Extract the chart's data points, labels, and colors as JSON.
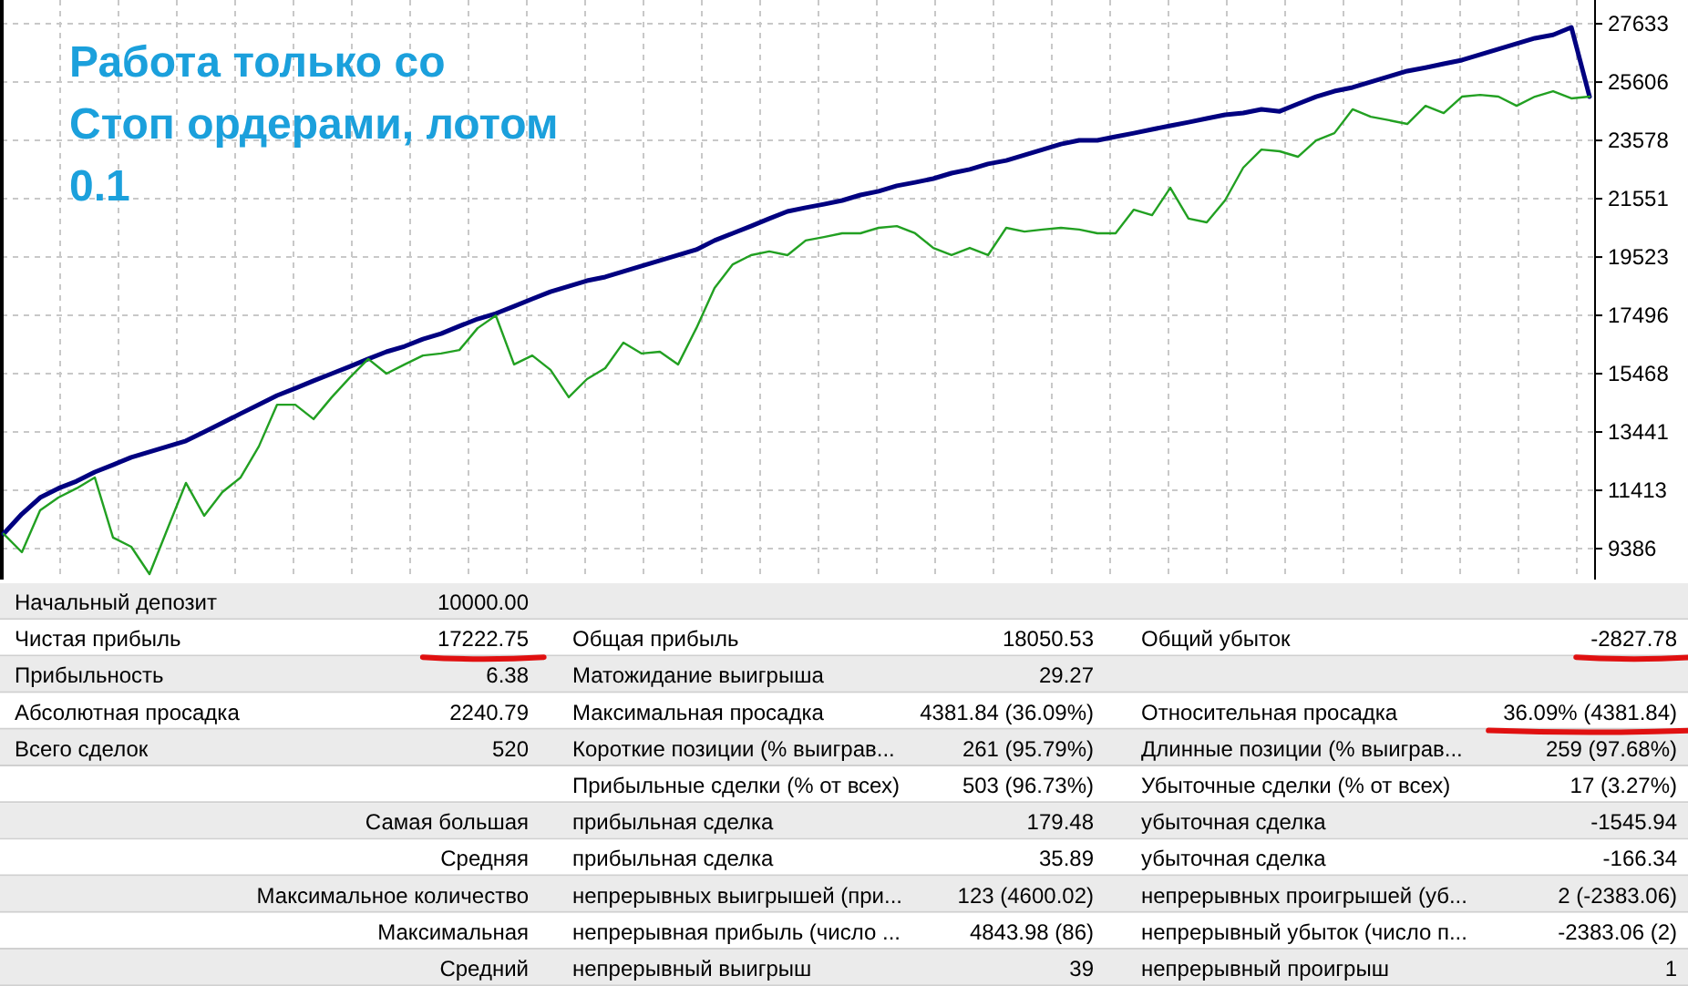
{
  "chart_data": {
    "type": "line",
    "title": "Работа только со Стоп ордерами, лотом 0.1",
    "categories": [
      null,
      null,
      null,
      null,
      null,
      null,
      null,
      null,
      null,
      null,
      null,
      null,
      null,
      null,
      null,
      null,
      null,
      null,
      null,
      null,
      null,
      null,
      null,
      null,
      null,
      null,
      null,
      null,
      null,
      null,
      null,
      null,
      null,
      null,
      null,
      null,
      null,
      null,
      null,
      null,
      null,
      null,
      null,
      null,
      null,
      null,
      null,
      null,
      null,
      null,
      null,
      null,
      null,
      null,
      null,
      null,
      null,
      null,
      null,
      null,
      null,
      null,
      null,
      null,
      null,
      null,
      null,
      null,
      null,
      null,
      null,
      null,
      null,
      null,
      null,
      null,
      null,
      null,
      null,
      null,
      null,
      null,
      null,
      null,
      null,
      null,
      null,
      null
    ],
    "series": [
      {
        "color": "#000080",
        "values": [
          9900,
          10590,
          11160,
          11480,
          11730,
          12050,
          12300,
          12560,
          12750,
          12940,
          13130,
          13440,
          13760,
          14080,
          14390,
          14710,
          14960,
          15220,
          15470,
          15720,
          15980,
          16230,
          16420,
          16670,
          16860,
          17120,
          17370,
          17560,
          17810,
          18070,
          18320,
          18510,
          18700,
          18830,
          19020,
          19210,
          19400,
          19590,
          19780,
          20100,
          20350,
          20600,
          20860,
          21110,
          21240,
          21360,
          21490,
          21680,
          21810,
          22000,
          22120,
          22250,
          22440,
          22570,
          22760,
          22880,
          23070,
          23260,
          23450,
          23580,
          23580,
          23710,
          23830,
          23960,
          24090,
          24210,
          24340,
          24470,
          24530,
          24660,
          24590,
          24850,
          25100,
          25290,
          25420,
          25610,
          25800,
          25990,
          26110,
          26240,
          26370,
          26560,
          26750,
          26940,
          27130,
          27250,
          27510,
          25100
        ]
      },
      {
        "color": "#22a022",
        "values": [
          9900,
          9260,
          10720,
          11160,
          11480,
          11860,
          9770,
          9450,
          8500,
          10090,
          11670,
          10530,
          11350,
          11860,
          12940,
          14390,
          14390,
          13890,
          14650,
          15340,
          15980,
          15470,
          15790,
          16100,
          16170,
          16290,
          17050,
          17490,
          15790,
          16100,
          15600,
          14650,
          15280,
          15660,
          16550,
          16170,
          16230,
          15790,
          17050,
          18450,
          19270,
          19590,
          19720,
          19590,
          20100,
          20220,
          20350,
          20350,
          20540,
          20600,
          20350,
          19840,
          19590,
          19840,
          19590,
          20540,
          20410,
          20480,
          20540,
          20480,
          20350,
          20350,
          21170,
          20980,
          21930,
          20860,
          20730,
          21490,
          22630,
          23260,
          23200,
          23010,
          23580,
          23830,
          24660,
          24400,
          24280,
          24150,
          24780,
          24530,
          25100,
          25160,
          25100,
          24780,
          25100,
          25290,
          25040,
          25100
        ]
      }
    ],
    "ylim": [
      8310,
      28460
    ],
    "yticks": [
      9386,
      11413,
      13441,
      15468,
      17496,
      19523,
      21551,
      23578,
      25606,
      27633
    ],
    "grid": true,
    "line_style": "solid",
    "marker": "none",
    "annotations": [
      "Начальный депозит",
      "10000.00",
      "Чистая прибыль",
      "17222.75",
      "Общая прибыль",
      "18050.53",
      "Общий убыток",
      "-2827.78",
      "Прибыльность",
      "6.38",
      "Матожидание выигрыша",
      "29.27",
      "Абсолютная просадка",
      "2240.79",
      "Максимальная просадка",
      "4381.84 (36.09%)",
      "Относительная просадка",
      "36.09% (4381.84)",
      "Всего сделок",
      "520",
      "Короткие позиции (% выиграв...",
      "261 (95.79%)",
      "Длинные позиции (% выиграв...",
      "259 (97.68%)",
      "Прибыльные сделки (% от всех)",
      "503 (96.73%)",
      "Убыточные сделки (% от всех)",
      "17 (3.27%)",
      "Самая большая",
      "прибыльная сделка",
      "179.48",
      "убыточная сделка",
      "-1545.94",
      "Средняя",
      "прибыльная сделка",
      "35.89",
      "убыточная сделка",
      "-166.34",
      "Максимальное количество",
      "непрерывных выигрышей (при...",
      "123 (4600.02)",
      "непрерывных проигрышей (уб...",
      "2 (-2383.06)",
      "Максимальная",
      "непрерывная прибыль (число ...",
      "4843.98 (86)",
      "непрерывный убыток (число п...",
      "-2383.06 (2)",
      "Средний",
      "непрерывный выигрыш",
      "39",
      "непрерывный проигрыш",
      "1"
    ]
  }
}
